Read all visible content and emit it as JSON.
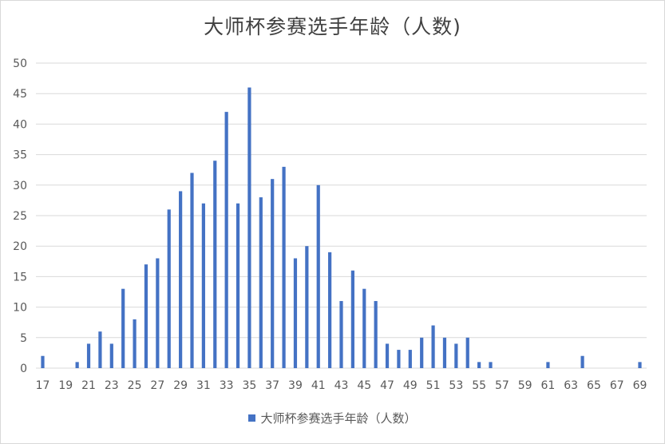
{
  "colors": {
    "bar": "#4472c4",
    "grid": "#d9d9d9",
    "axis_text": "#595959",
    "title": "#404040"
  },
  "chart_data": {
    "type": "bar",
    "title": "大师杯参赛选手年龄（人数)",
    "xlabel": "",
    "ylabel": "",
    "ylim": [
      0,
      50
    ],
    "y_ticks": [
      0,
      5,
      10,
      15,
      20,
      25,
      30,
      35,
      40,
      45,
      50
    ],
    "grid": true,
    "legend_position": "bottom",
    "categories": [
      17,
      18,
      19,
      20,
      21,
      22,
      23,
      24,
      25,
      26,
      27,
      28,
      29,
      30,
      31,
      32,
      33,
      34,
      35,
      36,
      37,
      38,
      39,
      40,
      41,
      42,
      43,
      44,
      45,
      46,
      47,
      48,
      49,
      50,
      51,
      52,
      53,
      54,
      55,
      56,
      57,
      58,
      59,
      60,
      61,
      62,
      63,
      64,
      65,
      66,
      67,
      68,
      69
    ],
    "x_tick_labels": [
      "17",
      "19",
      "21",
      "23",
      "25",
      "27",
      "29",
      "31",
      "33",
      "35",
      "37",
      "39",
      "41",
      "43",
      "45",
      "47",
      "49",
      "51",
      "53",
      "55",
      "57",
      "59",
      "61",
      "63",
      "65",
      "67",
      "69"
    ],
    "series": [
      {
        "name": "大师杯参赛选手年龄（人数）",
        "values": [
          2,
          0,
          0,
          1,
          4,
          6,
          4,
          13,
          8,
          17,
          18,
          26,
          29,
          32,
          27,
          34,
          42,
          27,
          46,
          28,
          31,
          33,
          18,
          20,
          30,
          19,
          11,
          16,
          13,
          11,
          4,
          3,
          3,
          5,
          7,
          5,
          4,
          5,
          1,
          1,
          0,
          0,
          0,
          0,
          1,
          0,
          0,
          2,
          0,
          0,
          0,
          0,
          1
        ]
      }
    ]
  }
}
